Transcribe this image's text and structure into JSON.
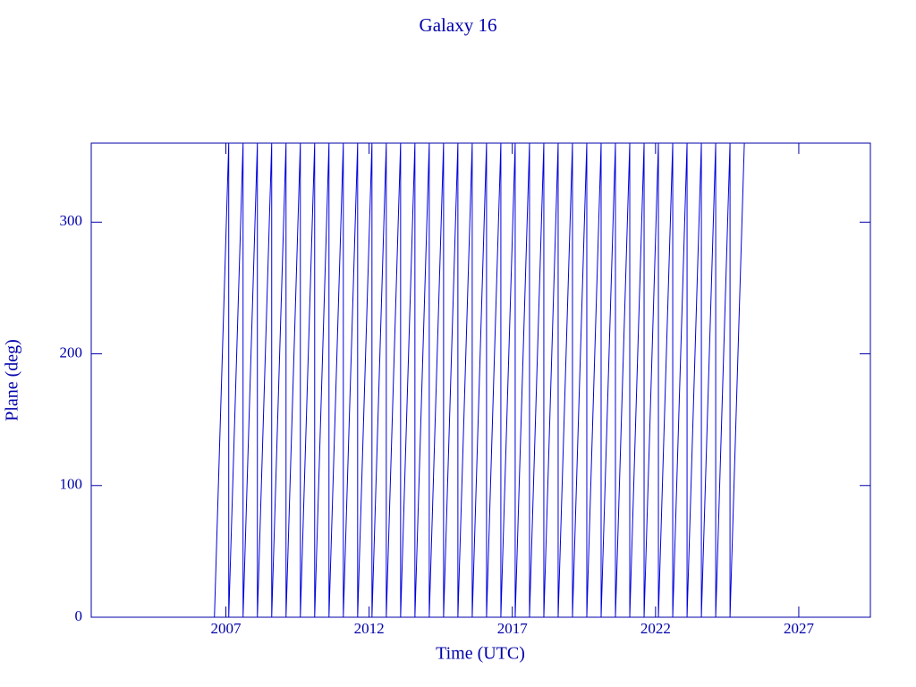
{
  "chart_data": {
    "type": "line",
    "title": "Galaxy 16",
    "x_label": "Time (UTC)",
    "y_label": "Plane (deg)",
    "color": "#0000dd",
    "x": [
      2006.6,
      2007.1,
      2007.1,
      2007.6,
      2007.6,
      2008.1,
      2008.1,
      2008.6,
      2008.6,
      2009.1,
      2009.1,
      2009.6,
      2009.6,
      2010.1,
      2010.1,
      2010.6,
      2010.6,
      2011.1,
      2011.1,
      2011.6,
      2011.6,
      2012.1,
      2012.1,
      2012.6,
      2012.6,
      2013.1,
      2013.1,
      2013.6,
      2013.6,
      2014.1,
      2014.1,
      2014.6,
      2014.6,
      2015.1,
      2015.1,
      2015.6,
      2015.6,
      2016.1,
      2016.1,
      2016.6,
      2016.6,
      2017.1,
      2017.1,
      2017.6,
      2017.6,
      2018.1,
      2018.1,
      2018.6,
      2018.6,
      2019.1,
      2019.1,
      2019.6,
      2019.6,
      2020.1,
      2020.1,
      2020.6,
      2020.6,
      2021.1,
      2021.1,
      2021.6,
      2021.6,
      2022.1,
      2022.1,
      2022.6,
      2022.6,
      2023.1,
      2023.1,
      2023.6,
      2023.6,
      2024.1,
      2024.1,
      2024.6,
      2024.6,
      2025.1
    ],
    "values": [
      0,
      360,
      0,
      360,
      0,
      360,
      0,
      360,
      0,
      360,
      0,
      360,
      0,
      360,
      0,
      360,
      0,
      360,
      0,
      360,
      0,
      360,
      0,
      360,
      0,
      360,
      0,
      360,
      0,
      360,
      0,
      360,
      0,
      360,
      0,
      360,
      0,
      360,
      0,
      360,
      0,
      360,
      0,
      360,
      0,
      360,
      0,
      360,
      0,
      360,
      0,
      360,
      0,
      360,
      0,
      360,
      0,
      360,
      0,
      360,
      0,
      360,
      0,
      360,
      0,
      360,
      0,
      360,
      0,
      360,
      0,
      360,
      0,
      360
    ],
    "xlim": [
      2002.3,
      2029.5
    ],
    "xticks": [
      2007,
      2012,
      2017,
      2022,
      2027
    ],
    "ylim": [
      0,
      360
    ],
    "yticks": [
      0,
      100,
      200,
      300
    ]
  }
}
